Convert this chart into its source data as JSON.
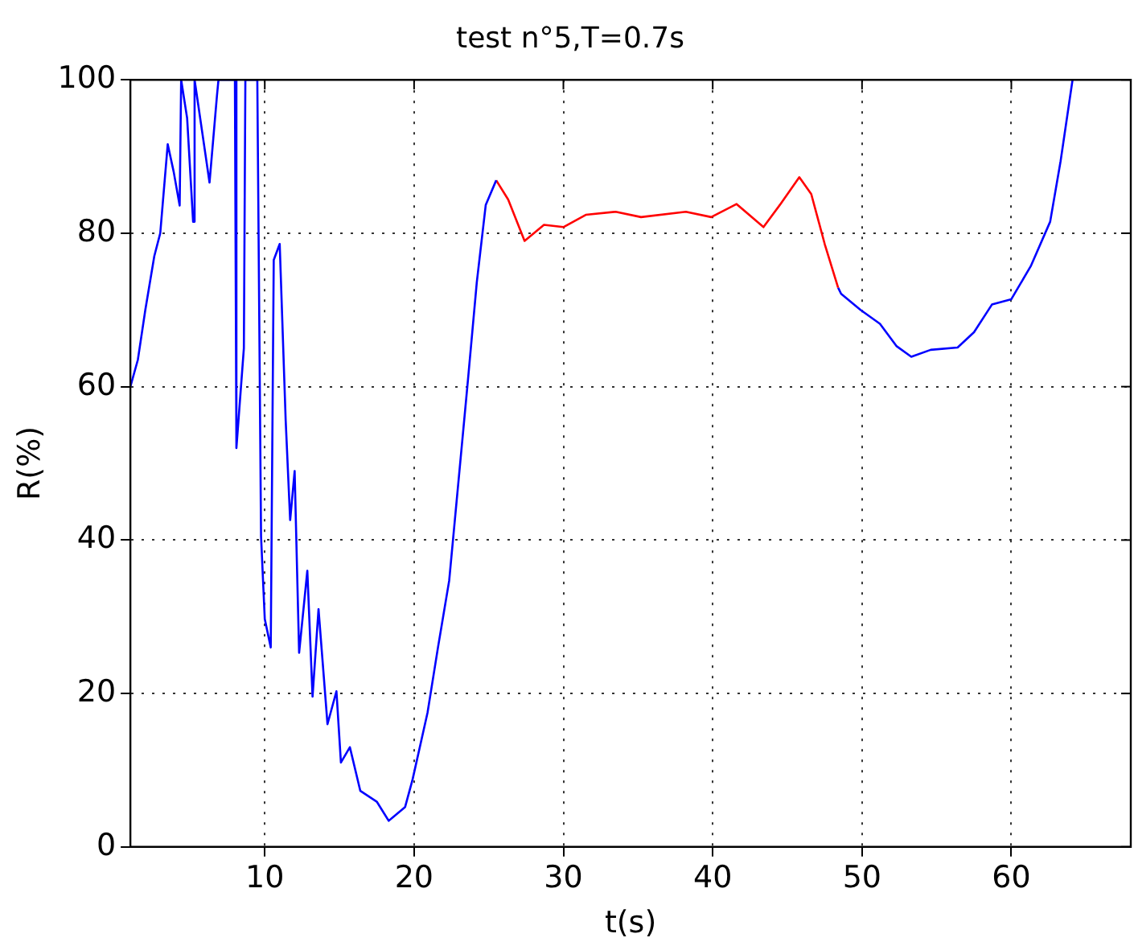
{
  "chart_data": {
    "type": "line",
    "title": "test n°5,T=0.7s",
    "xlabel": "t(s)",
    "ylabel": "R(%)",
    "xlim": [
      1,
      68
    ],
    "xticks": [
      10,
      20,
      30,
      40,
      50,
      60
    ],
    "ylim": [
      0,
      100
    ],
    "yticks": [
      0,
      20,
      40,
      60,
      80,
      100
    ],
    "grid": true,
    "line_style": "solid",
    "marker": "none",
    "series": [
      {
        "color": "#0000ff",
        "x": [
          1,
          1.5,
          2,
          2.6,
          3,
          3.5,
          3.9,
          4.3,
          4.4,
          4.8,
          5.2,
          5.3,
          6.3,
          6.8,
          6.9,
          8,
          8.1,
          8.6,
          8.7,
          9.5,
          9.75,
          10,
          10.4,
          10.6,
          11,
          11.4,
          11.7,
          12,
          12.3,
          12.85,
          13.2,
          13.6,
          14.2,
          14.8,
          15.1,
          15.7,
          16.4,
          17.5,
          18.3,
          19.4,
          19.9,
          20.9,
          21.6,
          22.35,
          23.6,
          24.2,
          24.8,
          25.5
        ],
        "values": [
          60,
          63.5,
          70,
          77,
          80,
          91.6,
          88,
          83.6,
          100,
          95,
          81.5,
          100,
          86.6,
          98,
          100,
          100,
          52,
          65,
          100,
          100,
          40.5,
          29.7,
          26,
          76.5,
          78.6,
          55.6,
          42.6,
          49,
          25.3,
          36,
          19.6,
          31,
          16,
          20.3,
          11,
          13,
          7.3,
          5.9,
          3.4,
          5.2,
          8.8,
          17.5,
          26,
          34.7,
          60.7,
          73.6,
          83.7,
          86.9
        ]
      },
      {
        "color": "#ff0000",
        "x": [
          25.5,
          26.3,
          27.4,
          28.7,
          30,
          31.5,
          33.5,
          35.2,
          38.2,
          39.9,
          41.6,
          43.4,
          44.5,
          45.8,
          46.6,
          47.5,
          48.4
        ],
        "values": [
          86.9,
          84.4,
          79,
          81.1,
          80.8,
          82.4,
          82.8,
          82.1,
          82.8,
          82.1,
          83.8,
          80.8,
          83.7,
          87.3,
          85.1,
          78.6,
          72.9
        ]
      },
      {
        "color": "#0000ff",
        "x": [
          48.4,
          48.6,
          49.9,
          51.2,
          52.3,
          53.3,
          54.6,
          56.4,
          57.5,
          58.7,
          60,
          61.3,
          62.6,
          63.3,
          64.1
        ],
        "values": [
          72.9,
          72.1,
          70,
          68.2,
          65.3,
          63.9,
          64.8,
          65.1,
          67.1,
          70.7,
          71.4,
          75.7,
          81.5,
          89.4,
          100
        ]
      }
    ]
  }
}
